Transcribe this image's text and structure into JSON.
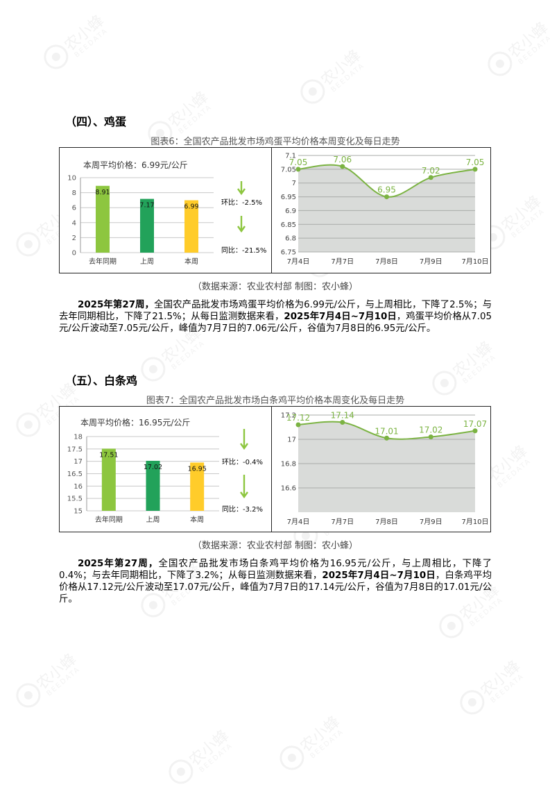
{
  "watermark": {
    "text": "农小蜂",
    "sub": "BEEDATA"
  },
  "sections": [
    {
      "title": "（四）、鸡蛋",
      "figure_title": "图表6：全国农产品批发市场鸡蛋平均价格本周变化及每日走势",
      "source": "（数据来源：农业农村部    制图：农小蜂）",
      "weekly": {
        "label": "本周平均价格：6.99元/公斤",
        "huanbi": "环比：-2.5%",
        "tongbi": "同比：-21.5%"
      },
      "paragraph": {
        "p1_bold": "2025年第27周，",
        "p1": "全国农产品批发市场鸡蛋平均价格为6.99元/公斤，与上周相比，下降了2.5%；与去年同期相比，下降了21.5%；从每日监测数据来看，",
        "p2_bold": "2025年7月4日~7月10日",
        "p2": "，鸡蛋平均价格从7.05元/公斤波动至7.05元/公斤，峰值为7月7日的7.06元/公斤，谷值为7月8日的6.95元/公斤。"
      }
    },
    {
      "title": "（五）、白条鸡",
      "figure_title": "图表7：全国农产品批发市场白条鸡平均价格本周变化及每日走势",
      "source": "（数据来源：农业农村部    制图：农小蜂）",
      "weekly": {
        "label": "本周平均价格：16.95元/公斤",
        "huanbi": "环比：-0.4%",
        "tongbi": "同比：-3.2%"
      },
      "paragraph": {
        "p1_bold": "2025年第27周，",
        "p1": "全国农产品批发市场白条鸡平均价格为16.95元/公斤，与上周相比，下降了0.4%；与去年同期相比，下降了3.2%；从每日监测数据来看，",
        "p2_bold": "2025年7月4日~7月10日",
        "p2": "，白条鸡平均价格从17.12元/公斤波动至17.07元/公斤，峰值为7月7日的17.14元/公斤，谷值为7月8日的17.01元/公斤。"
      }
    }
  ],
  "chart_data": [
    {
      "type": "bar",
      "categories": [
        "去年同期",
        "上周",
        "本周"
      ],
      "values": [
        8.91,
        7.17,
        6.99
      ],
      "value_labels": [
        "8.91",
        "7.17",
        "6.99"
      ],
      "yticks": [
        "0",
        "2",
        "4",
        "6",
        "8",
        "10"
      ],
      "ylim": [
        0,
        10
      ],
      "colors": [
        "#8dc63f",
        "#22a25a",
        "#ffcc2a"
      ]
    },
    {
      "type": "area",
      "categories": [
        "7月4日",
        "7月7日",
        "7月8日",
        "7月9日",
        "7月10日"
      ],
      "values": [
        7.05,
        7.06,
        6.95,
        7.02,
        7.05
      ],
      "value_labels": [
        "7.05",
        "7.06",
        "6.95",
        "7.02",
        "7.05"
      ],
      "yticks": [
        "6.75",
        "6.8",
        "6.85",
        "6.9",
        "6.95",
        "7",
        "7.05",
        "7.1"
      ],
      "ylim": [
        6.75,
        7.1
      ],
      "line_color": "#7bb342",
      "fill_color": "#d9dbd9"
    },
    {
      "type": "bar",
      "categories": [
        "去年同期",
        "上周",
        "本周"
      ],
      "values": [
        17.51,
        17.02,
        16.95
      ],
      "value_labels": [
        "17.51",
        "17.02",
        "16.95"
      ],
      "yticks": [
        "15",
        "15.5",
        "16",
        "16.5",
        "17",
        "17.5",
        "18"
      ],
      "ylim": [
        15,
        18
      ],
      "colors": [
        "#8dc63f",
        "#22a25a",
        "#ffcc2a"
      ]
    },
    {
      "type": "area",
      "categories": [
        "7月4日",
        "7月7日",
        "7月8日",
        "7月9日",
        "7月10日"
      ],
      "values": [
        17.12,
        17.14,
        17.01,
        17.02,
        17.07
      ],
      "value_labels": [
        "17.12",
        "17.14",
        "17.01",
        "17.02",
        "17.07"
      ],
      "yticks": [
        "16.6",
        "16.8",
        "17",
        "17.2"
      ],
      "ylim": [
        16.4,
        17.2
      ],
      "line_color": "#7bb342",
      "fill_color": "#d9dbd9"
    }
  ]
}
